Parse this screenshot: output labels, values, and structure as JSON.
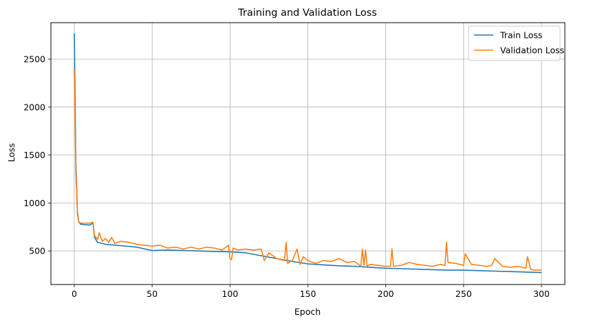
{
  "chart_data": {
    "type": "line",
    "title": "Training and Validation Loss",
    "xlabel": "Epoch",
    "ylabel": "Loss",
    "xlim": [
      -15,
      315
    ],
    "ylim": [
      150,
      2880
    ],
    "xticks": [
      0,
      50,
      100,
      150,
      200,
      250,
      300
    ],
    "yticks": [
      500,
      1000,
      1500,
      2000,
      2500
    ],
    "grid": true,
    "legend_position": "top-right",
    "series": [
      {
        "name": "Train Loss",
        "color": "#1f77b4",
        "x": [
          0,
          1,
          2,
          3,
          4,
          6,
          10,
          12,
          13,
          15,
          20,
          30,
          40,
          50,
          60,
          70,
          80,
          90,
          100,
          110,
          120,
          130,
          140,
          150,
          160,
          170,
          180,
          190,
          200,
          210,
          220,
          230,
          240,
          250,
          260,
          270,
          280,
          290,
          300
        ],
        "values": [
          2770,
          1450,
          900,
          800,
          780,
          775,
          770,
          790,
          640,
          590,
          570,
          555,
          540,
          505,
          510,
          505,
          500,
          495,
          490,
          480,
          450,
          420,
          390,
          365,
          355,
          345,
          340,
          330,
          320,
          315,
          310,
          305,
          300,
          300,
          295,
          290,
          285,
          280,
          275
        ]
      },
      {
        "name": "Validation Loss",
        "color": "#ff7f0e",
        "x": [
          0,
          1,
          2,
          3,
          4,
          6,
          10,
          12,
          13,
          15,
          16,
          18,
          20,
          22,
          24,
          26,
          30,
          35,
          40,
          45,
          50,
          55,
          60,
          65,
          70,
          75,
          80,
          85,
          90,
          95,
          99,
          100,
          101,
          102,
          105,
          110,
          115,
          120,
          122,
          125,
          130,
          135,
          136,
          137,
          140,
          143,
          145,
          147,
          150,
          155,
          160,
          165,
          170,
          175,
          180,
          184,
          185,
          186,
          187,
          188,
          190,
          195,
          200,
          203,
          204,
          205,
          210,
          215,
          220,
          225,
          230,
          235,
          238,
          239,
          240,
          245,
          250,
          251,
          255,
          260,
          265,
          268,
          270,
          275,
          280,
          285,
          290,
          291,
          293,
          295,
          300
        ],
        "values": [
          2390,
          1350,
          880,
          800,
          790,
          790,
          790,
          800,
          660,
          620,
          690,
          600,
          630,
          590,
          640,
          580,
          600,
          590,
          570,
          560,
          550,
          560,
          530,
          540,
          520,
          540,
          520,
          540,
          530,
          510,
          560,
          420,
          410,
          530,
          510,
          520,
          510,
          520,
          400,
          480,
          420,
          400,
          590,
          370,
          400,
          520,
          360,
          440,
          400,
          370,
          400,
          390,
          420,
          380,
          390,
          340,
          520,
          350,
          510,
          340,
          360,
          350,
          340,
          340,
          520,
          340,
          350,
          380,
          360,
          350,
          340,
          360,
          350,
          590,
          380,
          370,
          350,
          470,
          360,
          350,
          340,
          350,
          420,
          340,
          330,
          340,
          320,
          440,
          310,
          300,
          300
        ]
      }
    ]
  }
}
